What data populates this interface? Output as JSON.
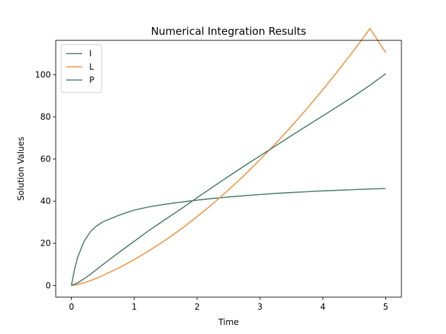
{
  "chart_data": {
    "type": "line",
    "title": "Numerical Integration Results",
    "xlabel": "Time",
    "ylabel": "Solution Values",
    "xlim": [
      -0.25,
      5.25
    ],
    "ylim": [
      -5.5,
      116.3
    ],
    "xticks": [
      0,
      1,
      2,
      3,
      4,
      5
    ],
    "yticks": [
      0,
      20,
      40,
      60,
      80,
      100
    ],
    "grid": false,
    "legend_position": "top-left",
    "x": [
      0,
      0.05,
      0.1,
      0.2,
      0.3,
      0.4,
      0.5,
      0.75,
      1.0,
      1.25,
      1.5,
      1.75,
      2.0,
      2.25,
      2.5,
      2.75,
      3.0,
      3.25,
      3.5,
      3.75,
      4.0,
      4.25,
      4.5,
      4.75,
      5.0
    ],
    "series": [
      {
        "name": "I",
        "color": "#4b7f69",
        "values": [
          0,
          8.0,
          13.5,
          21.0,
          25.5,
          28.3,
          30.2,
          33.3,
          35.8,
          37.4,
          38.6,
          39.6,
          40.5,
          41.3,
          42.0,
          42.6,
          43.2,
          43.7,
          44.1,
          44.5,
          44.9,
          45.2,
          45.5,
          45.8,
          46.0
        ]
      },
      {
        "name": "L",
        "color": "#f0913c",
        "values": [
          0,
          0.2,
          0.5,
          1.3,
          2.3,
          3.5,
          4.8,
          8.3,
          12.3,
          16.8,
          21.6,
          26.9,
          32.7,
          38.8,
          45.4,
          52.3,
          59.7,
          67.4,
          75.5,
          84.0,
          92.9,
          102.2,
          111.8,
          121.9,
          110.5
        ]
      },
      {
        "name": "P",
        "color": "#4b7f69",
        "values": [
          0,
          0.6,
          1.3,
          3.2,
          5.3,
          7.6,
          9.9,
          15.6,
          21.0,
          26.5,
          31.5,
          36.5,
          41.7,
          46.8,
          51.8,
          56.7,
          61.5,
          66.3,
          71.1,
          75.8,
          80.5,
          85.2,
          90.0,
          95.0,
          100.5
        ]
      }
    ]
  }
}
